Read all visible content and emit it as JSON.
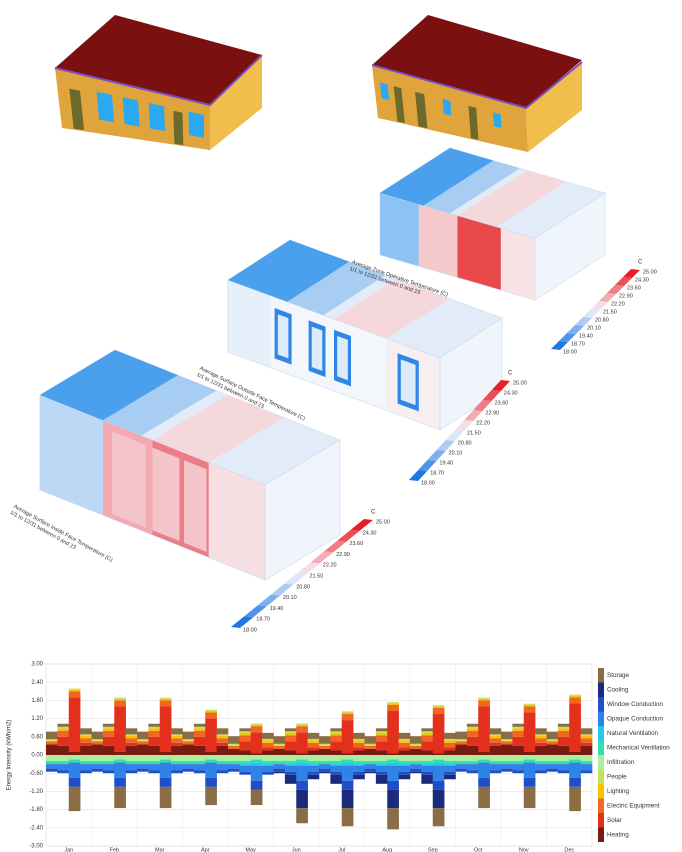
{
  "thermal_maps": [
    {
      "title": "Average Zone Operative Temperature (C)",
      "subtitle": "1/1 to 12/31 between 0 and 23",
      "unit": "C",
      "legend_labels": [
        "25.00",
        "24.30",
        "23.60",
        "22.90",
        "22.20",
        "21.50",
        "20.80",
        "20.10",
        "19.40",
        "18.70",
        "18.00"
      ]
    },
    {
      "title": "Average Surface Outside Face Temperature (C)",
      "subtitle": "1/1 to 12/31 between 0 and 23",
      "unit": "C",
      "legend_labels": [
        "25.00",
        "24.30",
        "23.60",
        "22.90",
        "22.20",
        "21.50",
        "20.80",
        "20.10",
        "19.40",
        "18.70",
        "18.00"
      ]
    },
    {
      "title": "Average Surface Inside Face Temperature (C)",
      "subtitle": "1/1 to 12/31 between 0 and 23",
      "unit": "C",
      "legend_labels": [
        "25.00",
        "24.30",
        "23.60",
        "22.90",
        "22.20",
        "21.50",
        "20.80",
        "20.10",
        "19.40",
        "18.70",
        "18.00"
      ]
    }
  ],
  "chart_data": {
    "type": "stacked-area",
    "y_label": "Energy Intensity (kWh/m2)",
    "grid": true,
    "legend": "right",
    "categories": [
      null,
      "Jan",
      null,
      null,
      null,
      "Feb",
      null,
      null,
      null,
      "Mar",
      null,
      null,
      null,
      "Apr",
      null,
      null,
      null,
      "May",
      null,
      null,
      null,
      "Jun",
      null,
      null,
      null,
      "Jul",
      null,
      null,
      null,
      "Aug",
      null,
      null,
      null,
      "Sep",
      null,
      null,
      null,
      "Oct",
      null,
      null,
      null,
      "Nov",
      null,
      null,
      null,
      "Dec",
      null,
      null
    ],
    "ylim": [
      -3,
      3
    ],
    "yticks": [
      {
        "value": -3,
        "label": "-3.00"
      },
      {
        "value": -2.4,
        "label": "-2.40"
      },
      {
        "value": -1.8,
        "label": "-1.80"
      },
      {
        "value": -1.2,
        "label": "-1.20"
      },
      {
        "value": -0.6,
        "label": "-0.60"
      },
      {
        "value": 0,
        "label": "0.00"
      },
      {
        "value": 0.6,
        "label": "0.60"
      },
      {
        "value": 1.2,
        "label": "1.20"
      },
      {
        "value": 1.8,
        "label": "1.80"
      },
      {
        "value": 2.4,
        "label": "2.40"
      },
      {
        "value": 3,
        "label": "3.00"
      }
    ],
    "series": [
      {
        "name": "Storage",
        "color": "#8a6d45",
        "values": [
          0.25,
          0.1,
          -0.8,
          0.2,
          0.25,
          0.1,
          -0.7,
          0.2,
          0.25,
          0.1,
          -0.7,
          0.2,
          0.25,
          0.1,
          -0.6,
          0.2,
          0.25,
          0.1,
          -0.5,
          0.2,
          0.25,
          0.1,
          -0.5,
          0.2,
          0.25,
          0.1,
          -0.6,
          0.2,
          0.25,
          0.1,
          -0.7,
          0.2,
          0.25,
          0.1,
          -0.6,
          0.2,
          0.25,
          0.1,
          -0.7,
          0.2,
          0.25,
          0.1,
          -0.7,
          0.2,
          0.25,
          0.1,
          -0.8,
          0.2
        ]
      },
      {
        "name": "Cooling",
        "color": "#1b2a7a",
        "values": [
          0,
          0,
          0,
          0,
          0,
          0,
          0,
          0,
          0,
          0,
          0,
          0,
          0,
          0,
          0,
          0,
          0,
          0,
          0,
          0,
          -0.05,
          -0.3,
          -0.6,
          -0.15,
          -0.05,
          -0.3,
          -0.6,
          -0.15,
          -0.05,
          -0.3,
          -0.6,
          -0.15,
          -0.05,
          -0.3,
          -0.6,
          -0.15,
          0,
          0,
          0,
          0,
          0,
          0,
          0,
          0,
          0,
          0,
          0,
          0
        ]
      },
      {
        "name": "Window Conduction",
        "color": "#1f4fc8",
        "values": [
          -0.1,
          -0.1,
          -0.3,
          -0.1,
          -0.1,
          -0.1,
          -0.3,
          -0.1,
          -0.1,
          -0.1,
          -0.3,
          -0.1,
          -0.1,
          -0.1,
          -0.3,
          -0.1,
          -0.1,
          -0.1,
          -0.3,
          -0.1,
          -0.1,
          -0.1,
          -0.3,
          -0.1,
          -0.1,
          -0.1,
          -0.3,
          -0.1,
          -0.1,
          -0.1,
          -0.3,
          -0.1,
          -0.1,
          -0.1,
          -0.3,
          -0.1,
          -0.1,
          -0.1,
          -0.3,
          -0.1,
          -0.1,
          -0.1,
          -0.3,
          -0.1,
          -0.1,
          -0.1,
          -0.3,
          -0.1
        ]
      },
      {
        "name": "Opaque Conduction",
        "color": "#2f82e6",
        "values": [
          -0.15,
          -0.2,
          -0.5,
          -0.2,
          -0.15,
          -0.2,
          -0.5,
          -0.2,
          -0.15,
          -0.2,
          -0.5,
          -0.2,
          -0.15,
          -0.2,
          -0.5,
          -0.2,
          -0.15,
          -0.2,
          -0.5,
          -0.2,
          -0.15,
          -0.2,
          -0.5,
          -0.2,
          -0.15,
          -0.2,
          -0.5,
          -0.2,
          -0.15,
          -0.2,
          -0.5,
          -0.2,
          -0.15,
          -0.2,
          -0.5,
          -0.2,
          -0.15,
          -0.2,
          -0.5,
          -0.2,
          -0.15,
          -0.2,
          -0.5,
          -0.2,
          -0.15,
          -0.2,
          -0.5,
          -0.2
        ]
      },
      {
        "name": "Natural Ventilation",
        "color": "#2ac6ea",
        "values": [
          0,
          0,
          0,
          0,
          0,
          0,
          0,
          0,
          0,
          0,
          0,
          0,
          0,
          0,
          0,
          0,
          0,
          -0.05,
          -0.1,
          -0.05,
          0,
          -0.05,
          -0.1,
          -0.05,
          0,
          -0.05,
          -0.1,
          -0.05,
          0,
          -0.05,
          -0.1,
          -0.05,
          0,
          -0.05,
          -0.1,
          -0.05,
          0,
          0,
          0,
          0,
          0,
          0,
          0,
          0,
          0,
          0,
          0,
          0
        ]
      },
      {
        "name": "Mechanical Ventilation",
        "color": "#36dcb0",
        "values": [
          -0.1,
          -0.1,
          -0.1,
          -0.1,
          -0.1,
          -0.1,
          -0.1,
          -0.1,
          -0.1,
          -0.1,
          -0.1,
          -0.1,
          -0.1,
          -0.1,
          -0.1,
          -0.1,
          -0.1,
          -0.1,
          -0.1,
          -0.1,
          -0.1,
          -0.1,
          -0.1,
          -0.1,
          -0.1,
          -0.1,
          -0.1,
          -0.1,
          -0.1,
          -0.1,
          -0.1,
          -0.1,
          -0.1,
          -0.1,
          -0.1,
          -0.1,
          -0.1,
          -0.1,
          -0.1,
          -0.1,
          -0.1,
          -0.1,
          -0.1,
          -0.1,
          -0.1,
          -0.1,
          -0.1,
          -0.1
        ]
      },
      {
        "name": "Infiltration",
        "color": "#a6f0a0",
        "values": [
          -0.2,
          -0.2,
          -0.15,
          -0.2,
          -0.2,
          -0.2,
          -0.15,
          -0.2,
          -0.2,
          -0.2,
          -0.15,
          -0.2,
          -0.2,
          -0.2,
          -0.15,
          -0.2,
          -0.2,
          -0.2,
          -0.15,
          -0.2,
          -0.2,
          -0.2,
          -0.15,
          -0.2,
          -0.2,
          -0.2,
          -0.15,
          -0.2,
          -0.2,
          -0.2,
          -0.15,
          -0.2,
          -0.2,
          -0.2,
          -0.15,
          -0.2,
          -0.2,
          -0.2,
          -0.15,
          -0.2,
          -0.2,
          -0.2,
          -0.15,
          -0.2,
          -0.2,
          -0.2,
          -0.15,
          -0.2
        ]
      },
      {
        "name": "People",
        "color": "#c2e25a",
        "values": [
          0.05,
          0.05,
          0.04,
          0.05,
          0.05,
          0.05,
          0.04,
          0.05,
          0.05,
          0.05,
          0.04,
          0.05,
          0.05,
          0.05,
          0.04,
          0.05,
          0.05,
          0.05,
          0.04,
          0.05,
          0.05,
          0.05,
          0.04,
          0.05,
          0.05,
          0.05,
          0.04,
          0.05,
          0.05,
          0.05,
          0.04,
          0.05,
          0.05,
          0.05,
          0.04,
          0.05,
          0.05,
          0.05,
          0.04,
          0.05,
          0.05,
          0.05,
          0.04,
          0.05,
          0.05,
          0.05,
          0.04,
          0.05
        ]
      },
      {
        "name": "Lighting",
        "color": "#f6c400",
        "values": [
          0.02,
          0.08,
          0.05,
          0.08,
          0.02,
          0.08,
          0.05,
          0.08,
          0.02,
          0.08,
          0.05,
          0.08,
          0.02,
          0.08,
          0.05,
          0.08,
          0.02,
          0.08,
          0.05,
          0.08,
          0.02,
          0.08,
          0.05,
          0.08,
          0.02,
          0.08,
          0.05,
          0.08,
          0.02,
          0.08,
          0.05,
          0.08,
          0.02,
          0.08,
          0.05,
          0.08,
          0.02,
          0.08,
          0.05,
          0.08,
          0.02,
          0.08,
          0.05,
          0.08,
          0.02,
          0.08,
          0.05,
          0.08
        ]
      },
      {
        "name": "Electric Equipment",
        "color": "#f26522",
        "values": [
          0.1,
          0.2,
          0.2,
          0.15,
          0.1,
          0.2,
          0.2,
          0.15,
          0.1,
          0.2,
          0.2,
          0.15,
          0.1,
          0.2,
          0.2,
          0.15,
          0.1,
          0.2,
          0.2,
          0.15,
          0.1,
          0.2,
          0.2,
          0.15,
          0.1,
          0.2,
          0.2,
          0.15,
          0.1,
          0.2,
          0.2,
          0.15,
          0.1,
          0.2,
          0.2,
          0.15,
          0.1,
          0.2,
          0.2,
          0.15,
          0.1,
          0.2,
          0.2,
          0.15,
          0.1,
          0.2,
          0.2,
          0.15
        ]
      },
      {
        "name": "Solar",
        "color": "#e2301d",
        "values": [
          0,
          0.3,
          1.8,
          0.1,
          0,
          0.3,
          1.5,
          0.1,
          0,
          0.3,
          1.5,
          0.1,
          0,
          0.3,
          1.1,
          0.1,
          0,
          0.3,
          0.7,
          0.1,
          0,
          0.3,
          0.7,
          0.1,
          0,
          0.3,
          1.1,
          0.1,
          0,
          0.3,
          1.4,
          0.1,
          0,
          0.3,
          1.3,
          0.1,
          0,
          0.3,
          1.5,
          0.1,
          0,
          0.3,
          1.3,
          0.1,
          0,
          0.3,
          1.6,
          0.1
        ]
      },
      {
        "name": "Heating",
        "color": "#7a1b12",
        "values": [
          0.35,
          0.3,
          0.1,
          0.3,
          0.35,
          0.3,
          0.1,
          0.3,
          0.35,
          0.3,
          0.1,
          0.3,
          0.35,
          0.3,
          0.1,
          0.3,
          0.2,
          0.15,
          0.05,
          0.15,
          0.2,
          0.15,
          0.05,
          0.15,
          0.2,
          0.15,
          0.05,
          0.15,
          0.2,
          0.15,
          0.05,
          0.15,
          0.2,
          0.15,
          0.05,
          0.15,
          0.35,
          0.3,
          0.1,
          0.3,
          0.35,
          0.3,
          0.1,
          0.3,
          0.35,
          0.3,
          0.1,
          0.3
        ]
      }
    ]
  }
}
